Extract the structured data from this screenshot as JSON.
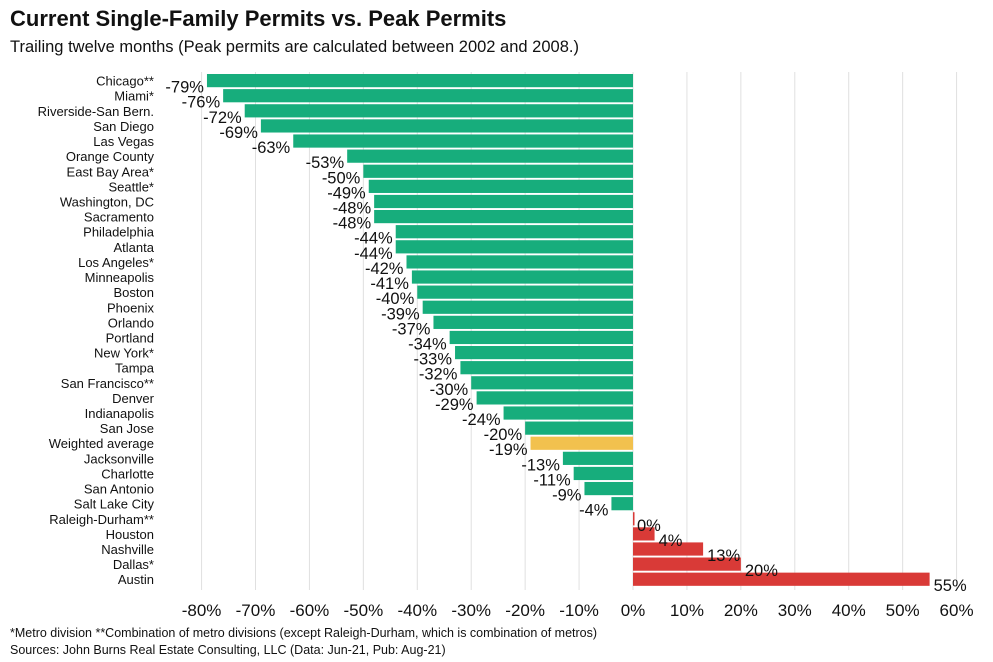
{
  "header": {
    "title": "Current Single-Family Permits vs. Peak Permits",
    "subtitle": "Trailing twelve months (Peak permits are calculated between 2002 and 2008.)"
  },
  "footer": {
    "note": "*Metro division **Combination of metro divisions (except Raleigh-Durham, which is combination of metros)",
    "source": "Sources: John Burns Real Estate Consulting, LLC (Data: Jun-21, Pub: Aug-21)"
  },
  "colors": {
    "negative": "#17AD7C",
    "positive": "#D93A37",
    "average": "#F2C14E",
    "grid": "#E0E0E0"
  },
  "chart_data": {
    "type": "bar",
    "orientation": "horizontal",
    "categories": [
      "Chicago**",
      "Miami*",
      "Riverside-San Bern.",
      "San Diego",
      "Las Vegas",
      "Orange County",
      "East Bay Area*",
      "Seattle*",
      "Washington, DC",
      "Sacramento",
      "Philadelphia",
      "Atlanta",
      "Los Angeles*",
      "Minneapolis",
      "Boston",
      "Phoenix",
      "Orlando",
      "Portland",
      "New York*",
      "Tampa",
      "San Francisco**",
      "Denver",
      "Indianapolis",
      "San Jose",
      "Weighted average",
      "Jacksonville",
      "Charlotte",
      "San Antonio",
      "Salt Lake City",
      "Raleigh-Durham**",
      "Houston",
      "Nashville",
      "Dallas*",
      "Austin"
    ],
    "values": [
      -79,
      -76,
      -72,
      -69,
      -63,
      -53,
      -50,
      -49,
      -48,
      -48,
      -44,
      -44,
      -42,
      -41,
      -40,
      -39,
      -37,
      -34,
      -33,
      -32,
      -30,
      -29,
      -24,
      -20,
      -19,
      -13,
      -11,
      -9,
      -4,
      0,
      4,
      13,
      20,
      55
    ],
    "value_labels": [
      "-79%",
      "-76%",
      "-72%",
      "-69%",
      "-63%",
      "-53%",
      "-50%",
      "-49%",
      "-48%",
      "-48%",
      "-44%",
      "-44%",
      "-42%",
      "-41%",
      "-40%",
      "-39%",
      "-37%",
      "-34%",
      "-33%",
      "-32%",
      "-30%",
      "-29%",
      "-24%",
      "-20%",
      "-19%",
      "-13%",
      "-11%",
      "-9%",
      "-4%",
      "0%",
      "4%",
      "13%",
      "20%",
      "55%"
    ],
    "highlight_index": 24,
    "xlim": [
      -80,
      60
    ],
    "xticks": [
      -80,
      -70,
      -60,
      -50,
      -40,
      -30,
      -20,
      -10,
      0,
      10,
      20,
      30,
      40,
      50,
      60
    ],
    "xtick_labels": [
      "-80%",
      "-70%",
      "-60%",
      "-50%",
      "-40%",
      "-30%",
      "-20%",
      "-10%",
      "0%",
      "10%",
      "20%",
      "30%",
      "40%",
      "50%",
      "60%"
    ],
    "grid": true,
    "legend": "none"
  }
}
